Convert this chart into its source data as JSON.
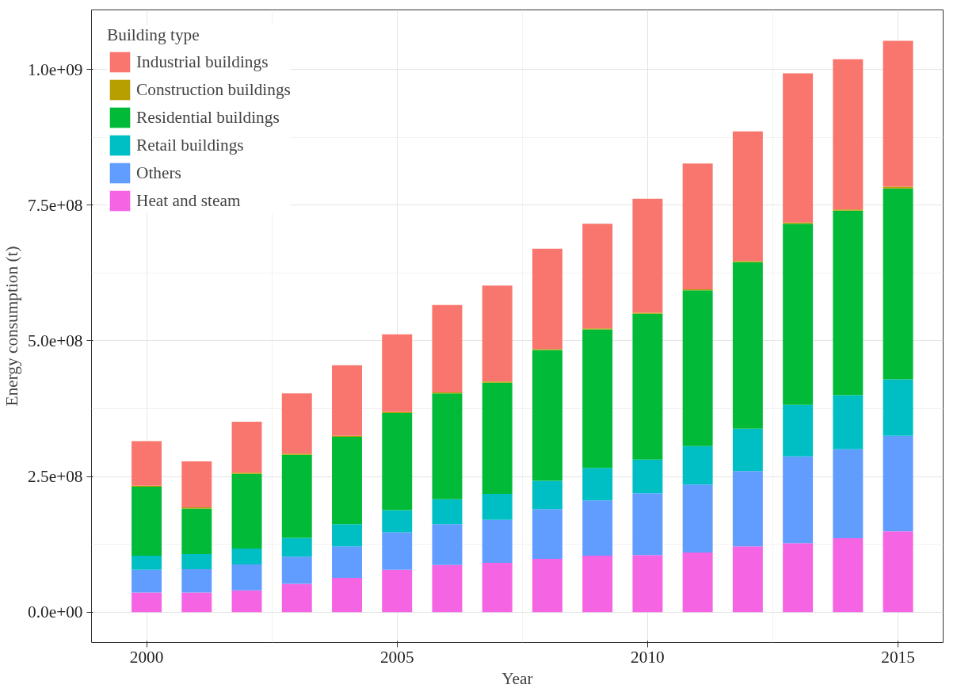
{
  "chart_data": {
    "type": "bar",
    "stacked": true,
    "xlabel": "Year",
    "ylabel": "Energy consumption (t)",
    "legend_title": "Building type",
    "legend": "top left",
    "grid": true,
    "x": [
      2000,
      2001,
      2002,
      2003,
      2004,
      2005,
      2006,
      2007,
      2008,
      2009,
      2010,
      2011,
      2012,
      2013,
      2014,
      2015
    ],
    "xlim": [
      1998.9,
      2015.9
    ],
    "xticks": [
      2000,
      2005,
      2010,
      2015
    ],
    "ylim": [
      -56000000,
      1110000000
    ],
    "yticks": [
      {
        "value": 0,
        "label": "0.0e+00"
      },
      {
        "value": 250000000,
        "label": "2.5e+08"
      },
      {
        "value": 500000000,
        "label": "5.0e+08"
      },
      {
        "value": 750000000,
        "label": "7.5e+08"
      },
      {
        "value": 1000000000,
        "label": "1.0e+09"
      }
    ],
    "series": [
      {
        "name": "Heat and steam",
        "color": "#f564e3",
        "values": [
          36000000,
          36000000,
          40000000,
          52000000,
          63000000,
          78000000,
          87000000,
          91000000,
          98000000,
          104000000,
          105000000,
          110000000,
          121000000,
          127000000,
          136000000,
          149000000
        ]
      },
      {
        "name": "Others",
        "color": "#619cff",
        "values": [
          42000000,
          43000000,
          48000000,
          50000000,
          58000000,
          69000000,
          75000000,
          79000000,
          92000000,
          102000000,
          114000000,
          125000000,
          139000000,
          160000000,
          164000000,
          176000000
        ]
      },
      {
        "name": "Retail buildings",
        "color": "#00bfc4",
        "values": [
          26000000,
          28000000,
          29000000,
          35000000,
          41000000,
          41000000,
          46000000,
          48000000,
          52000000,
          60000000,
          62000000,
          71000000,
          78000000,
          95000000,
          100000000,
          104000000
        ]
      },
      {
        "name": "Residential buildings",
        "color": "#00ba38",
        "values": [
          127000000,
          84000000,
          138000000,
          153000000,
          161000000,
          179000000,
          195000000,
          205000000,
          241000000,
          255000000,
          269000000,
          287000000,
          307000000,
          334000000,
          340000000,
          352000000
        ]
      },
      {
        "name": "Construction buildings",
        "color": "#b79f00",
        "values": [
          2000000,
          2000000,
          2000000,
          2000000,
          2000000,
          2000000,
          2000000,
          2000000,
          2000000,
          2000000,
          2000000,
          2000000,
          2000000,
          2000000,
          2000000,
          3000000
        ]
      },
      {
        "name": "Industrial buildings",
        "color": "#f8766d",
        "values": [
          82000000,
          85000000,
          94000000,
          111000000,
          130000000,
          143000000,
          161000000,
          177000000,
          185000000,
          193000000,
          210000000,
          232000000,
          239000000,
          275000000,
          277000000,
          269000000
        ]
      }
    ]
  }
}
